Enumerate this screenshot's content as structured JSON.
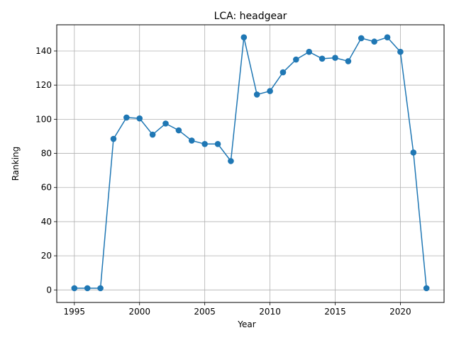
{
  "chart_data": {
    "type": "line",
    "title": "LCA: headgear",
    "xlabel": "Year",
    "ylabel": "Ranking",
    "xlim": [
      1993.65,
      2023.35
    ],
    "ylim": [
      -7.35,
      155.35
    ],
    "xticks": [
      1995,
      2000,
      2005,
      2010,
      2015,
      2020
    ],
    "yticks": [
      0,
      20,
      40,
      60,
      80,
      100,
      120,
      140
    ],
    "grid": true,
    "color": "#1f77b4",
    "x": [
      1995,
      1996,
      1997,
      1998,
      1999,
      2000,
      2001,
      2002,
      2003,
      2004,
      2005,
      2006,
      2007,
      2008,
      2009,
      2010,
      2011,
      2012,
      2013,
      2014,
      2015,
      2016,
      2017,
      2018,
      2019,
      2020,
      2021,
      2022
    ],
    "y": [
      1,
      1,
      1,
      88.5,
      101,
      100.5,
      91,
      97.5,
      93.5,
      87.5,
      85.5,
      85.5,
      75.5,
      148,
      114.5,
      116.5,
      127.5,
      135,
      139.5,
      135.5,
      136,
      134,
      147.5,
      145.5,
      148,
      139.5,
      80.5,
      1
    ]
  }
}
